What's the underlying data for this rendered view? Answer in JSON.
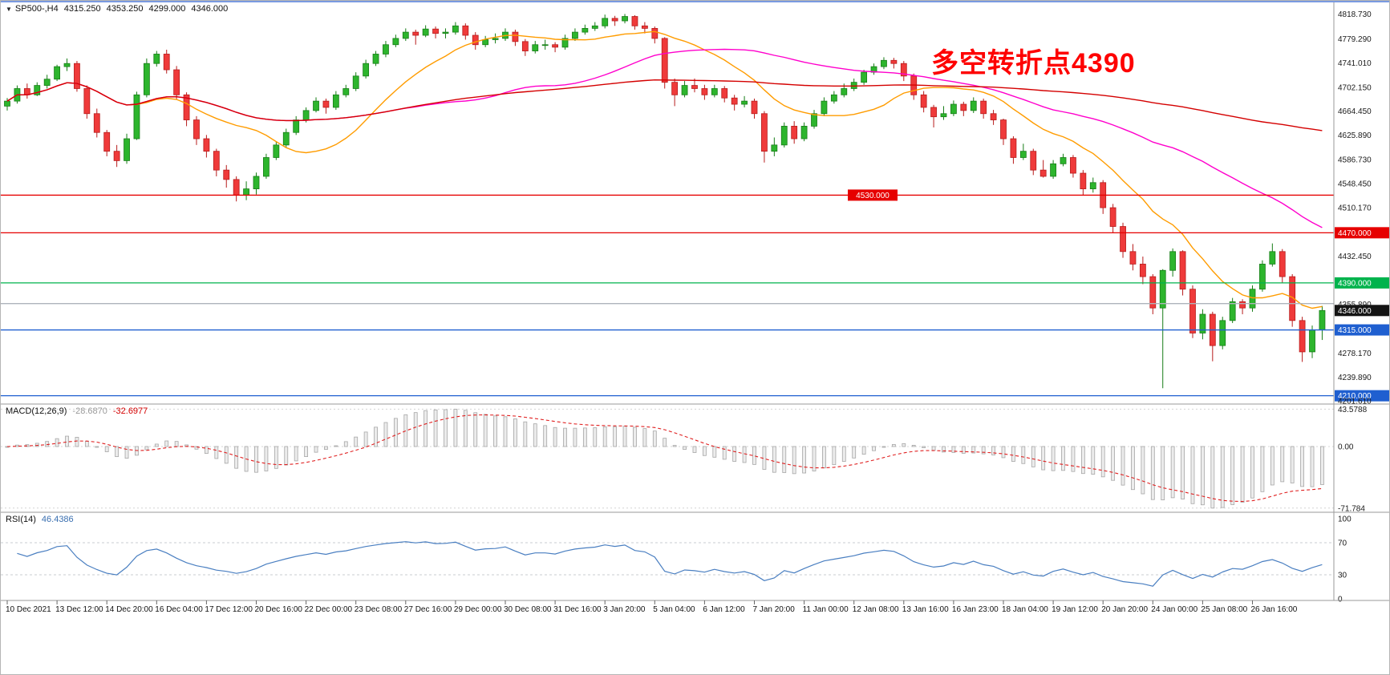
{
  "window": {
    "symbol": "SP500-,H4",
    "open": "4315.250",
    "high": "4353.250",
    "low": "4299.000",
    "close": "4346.000"
  },
  "annotation": {
    "text": "多空转折点4390",
    "color": "#fe0000"
  },
  "price_axis": {
    "labels": [
      "4818.730",
      "4779.290",
      "4741.010",
      "4702.150",
      "4664.450",
      "4625.890",
      "4586.730",
      "4548.450",
      "4510.170",
      "4432.450",
      "4355.890",
      "4278.170",
      "4239.890",
      "4201.610"
    ]
  },
  "main_chart": {
    "up_color": "#2db52d",
    "up_edge": "#177d17",
    "down_color": "#ef3a3a",
    "down_edge": "#b71c1c",
    "hlines": [
      {
        "price": 4530,
        "label": "4530.000",
        "color": "#e60000",
        "badge": "mid"
      },
      {
        "price": 4470,
        "label": "4470.000",
        "color": "#e60000",
        "badge": "axis"
      },
      {
        "price": 4390,
        "label": "4390.000",
        "color": "#00b34d",
        "badge": "axis"
      },
      {
        "price": 4357,
        "label": "",
        "color": "#aeb4bb",
        "badge": "none"
      },
      {
        "price": 4315,
        "label": "4315.000",
        "color": "#1f5fd0",
        "badge": "axis"
      },
      {
        "price": 4210,
        "label": "4210.000",
        "color": "#1f5fd0",
        "badge": "axis"
      }
    ],
    "current_price": {
      "label": "4346.000",
      "price": 4346,
      "bg": "#141414"
    },
    "moving_averages": [
      {
        "name": "ma-fast",
        "period": 13,
        "color": "#ff9c00"
      },
      {
        "name": "ma-mid",
        "period": 40,
        "color": "#ff00cc"
      },
      {
        "name": "ma-slow",
        "period": 120,
        "color": "#d40000"
      }
    ]
  },
  "indicators": {
    "macd": {
      "name": "MACD(12,26,9)",
      "main_value": "-28.6870",
      "signal_value": "-32.6977",
      "fast": 12,
      "slow": 26,
      "signal": 9,
      "hist_fill": "#ececec",
      "hist_edge": "#a6a6a6",
      "signal_color": "#e02020",
      "axis": [
        {
          "label": "43.5788",
          "value": 43.5788
        },
        {
          "label": "0.00",
          "value": 0
        },
        {
          "label": "-71.784",
          "value": -71.784
        }
      ]
    },
    "rsi": {
      "name": "RSI(14)",
      "value": "46.4386",
      "period": 14,
      "line_color": "#4a7fc1",
      "levels": [
        70,
        30
      ],
      "axis": [
        {
          "label": "100",
          "value": 100
        },
        {
          "label": "70",
          "value": 70
        },
        {
          "label": "30",
          "value": 30
        },
        {
          "label": "0",
          "value": 0
        }
      ]
    }
  },
  "time_axis": {
    "labels": [
      "10 Dec 2021",
      "13 Dec 12:00",
      "14 Dec 20:00",
      "16 Dec 04:00",
      "17 Dec 12:00",
      "20 Dec 16:00",
      "22 Dec 00:00",
      "23 Dec 08:00",
      "27 Dec 16:00",
      "29 Dec 00:00",
      "30 Dec 08:00",
      "31 Dec 16:00",
      "3 Jan 20:00",
      "5 Jan 04:00",
      "6 Jan 12:00",
      "7 Jan 20:00",
      "11 Jan 00:00",
      "12 Jan 08:00",
      "13 Jan 16:00",
      "16 Jan 23:00",
      "18 Jan 04:00",
      "19 Jan 12:00",
      "20 Jan 20:00",
      "24 Jan 00:00",
      "25 Jan 08:00",
      "26 Jan 16:00"
    ]
  },
  "chart_data": {
    "type": "candlestick",
    "symbol": "SP500-",
    "timeframe": "H4",
    "title": "SP500-,H4 4315.250 4353.250 4299.000 4346.000",
    "last_bar": {
      "open": 4315.25,
      "high": 4353.25,
      "low": 4299.0,
      "close": 4346.0
    },
    "price_lines": [
      4530,
      4470,
      4390,
      4315,
      4210
    ],
    "annotation": "多空转折点4390",
    "y_axis_ticks": [
      4818.73,
      4779.29,
      4741.01,
      4702.15,
      4664.45,
      4625.89,
      4586.73,
      4548.45,
      4510.17,
      4470.0,
      4432.45,
      4390.0,
      4355.89,
      4346.0,
      4315.0,
      4278.17,
      4239.89,
      4210.0,
      4201.61
    ],
    "x_labels": [
      "10 Dec 2021",
      "13 Dec 12:00",
      "14 Dec 20:00",
      "16 Dec 04:00",
      "17 Dec 12:00",
      "20 Dec 16:00",
      "22 Dec 00:00",
      "23 Dec 08:00",
      "27 Dec 16:00",
      "29 Dec 00:00",
      "30 Dec 08:00",
      "31 Dec 16:00",
      "3 Jan 20:00",
      "5 Jan 04:00",
      "6 Jan 12:00",
      "7 Jan 20:00",
      "11 Jan 00:00",
      "12 Jan 08:00",
      "13 Jan 16:00",
      "16 Jan 23:00",
      "18 Jan 04:00",
      "19 Jan 12:00",
      "20 Jan 20:00",
      "24 Jan 00:00",
      "25 Jan 08:00",
      "26 Jan 16:00"
    ],
    "candles_per_label": 5,
    "candles": [
      [
        4672,
        4685,
        4665,
        4680
      ],
      [
        4680,
        4705,
        4676,
        4700
      ],
      [
        4700,
        4708,
        4684,
        4690
      ],
      [
        4690,
        4710,
        4688,
        4705
      ],
      [
        4705,
        4722,
        4700,
        4715
      ],
      [
        4715,
        4738,
        4712,
        4735
      ],
      [
        4735,
        4748,
        4728,
        4740
      ],
      [
        4740,
        4744,
        4695,
        4700
      ],
      [
        4700,
        4705,
        4652,
        4660
      ],
      [
        4660,
        4668,
        4622,
        4630
      ],
      [
        4630,
        4634,
        4592,
        4600
      ],
      [
        4600,
        4610,
        4575,
        4585
      ],
      [
        4585,
        4628,
        4580,
        4620
      ],
      [
        4620,
        4695,
        4618,
        4690
      ],
      [
        4690,
        4748,
        4686,
        4740
      ],
      [
        4740,
        4760,
        4735,
        4755
      ],
      [
        4755,
        4762,
        4724,
        4730
      ],
      [
        4730,
        4736,
        4682,
        4690
      ],
      [
        4690,
        4694,
        4640,
        4650
      ],
      [
        4650,
        4656,
        4610,
        4620
      ],
      [
        4620,
        4626,
        4590,
        4600
      ],
      [
        4600,
        4604,
        4560,
        4570
      ],
      [
        4570,
        4578,
        4542,
        4555
      ],
      [
        4555,
        4560,
        4520,
        4530
      ],
      [
        4530,
        4552,
        4522,
        4540
      ],
      [
        4540,
        4566,
        4531,
        4560
      ],
      [
        4560,
        4596,
        4556,
        4590
      ],
      [
        4590,
        4616,
        4586,
        4610
      ],
      [
        4610,
        4636,
        4606,
        4630
      ],
      [
        4630,
        4656,
        4626,
        4650
      ],
      [
        4650,
        4670,
        4646,
        4665
      ],
      [
        4665,
        4686,
        4662,
        4680
      ],
      [
        4680,
        4684,
        4660,
        4670
      ],
      [
        4670,
        4696,
        4666,
        4690
      ],
      [
        4690,
        4706,
        4686,
        4700
      ],
      [
        4700,
        4726,
        4696,
        4720
      ],
      [
        4720,
        4746,
        4716,
        4740
      ],
      [
        4740,
        4760,
        4736,
        4755
      ],
      [
        4755,
        4776,
        4750,
        4770
      ],
      [
        4770,
        4786,
        4766,
        4780
      ],
      [
        4780,
        4796,
        4776,
        4790
      ],
      [
        4790,
        4794,
        4770,
        4785
      ],
      [
        4785,
        4801,
        4782,
        4795
      ],
      [
        4795,
        4799,
        4780,
        4788
      ],
      [
        4788,
        4796,
        4780,
        4790
      ],
      [
        4790,
        4806,
        4786,
        4800
      ],
      [
        4800,
        4804,
        4778,
        4785
      ],
      [
        4785,
        4790,
        4762,
        4770
      ],
      [
        4770,
        4784,
        4766,
        4778
      ],
      [
        4778,
        4788,
        4772,
        4780
      ],
      [
        4780,
        4796,
        4776,
        4790
      ],
      [
        4790,
        4794,
        4768,
        4775
      ],
      [
        4775,
        4779,
        4752,
        4760
      ],
      [
        4760,
        4776,
        4756,
        4770
      ],
      [
        4770,
        4778,
        4762,
        4770
      ],
      [
        4770,
        4774,
        4758,
        4766
      ],
      [
        4766,
        4786,
        4762,
        4780
      ],
      [
        4780,
        4796,
        4776,
        4790
      ],
      [
        4790,
        4802,
        4786,
        4796
      ],
      [
        4796,
        4806,
        4792,
        4800
      ],
      [
        4800,
        4818,
        4796,
        4812
      ],
      [
        4812,
        4816,
        4800,
        4808
      ],
      [
        4808,
        4819,
        4804,
        4815
      ],
      [
        4815,
        4817,
        4794,
        4800
      ],
      [
        4800,
        4806,
        4788,
        4796
      ],
      [
        4796,
        4799,
        4772,
        4780
      ],
      [
        4780,
        4782,
        4700,
        4710
      ],
      [
        4710,
        4716,
        4672,
        4690
      ],
      [
        4690,
        4712,
        4686,
        4705
      ],
      [
        4705,
        4716,
        4694,
        4700
      ],
      [
        4700,
        4706,
        4682,
        4690
      ],
      [
        4690,
        4706,
        4686,
        4700
      ],
      [
        4700,
        4704,
        4678,
        4685
      ],
      [
        4685,
        4690,
        4665,
        4675
      ],
      [
        4675,
        4688,
        4670,
        4680
      ],
      [
        4680,
        4684,
        4652,
        4660
      ],
      [
        4660,
        4664,
        4582,
        4600
      ],
      [
        4600,
        4622,
        4592,
        4610
      ],
      [
        4610,
        4646,
        4606,
        4640
      ],
      [
        4640,
        4648,
        4612,
        4620
      ],
      [
        4620,
        4646,
        4616,
        4640
      ],
      [
        4640,
        4666,
        4636,
        4660
      ],
      [
        4660,
        4686,
        4656,
        4680
      ],
      [
        4680,
        4696,
        4676,
        4690
      ],
      [
        4690,
        4708,
        4686,
        4700
      ],
      [
        4700,
        4716,
        4696,
        4710
      ],
      [
        4710,
        4730,
        4706,
        4726
      ],
      [
        4726,
        4740,
        4722,
        4735
      ],
      [
        4735,
        4750,
        4731,
        4745
      ],
      [
        4745,
        4749,
        4732,
        4740
      ],
      [
        4740,
        4744,
        4712,
        4720
      ],
      [
        4720,
        4724,
        4682,
        4690
      ],
      [
        4690,
        4696,
        4662,
        4670
      ],
      [
        4670,
        4674,
        4638,
        4655
      ],
      [
        4655,
        4672,
        4650,
        4660
      ],
      [
        4660,
        4681,
        4656,
        4675
      ],
      [
        4675,
        4679,
        4656,
        4665
      ],
      [
        4665,
        4686,
        4661,
        4680
      ],
      [
        4680,
        4684,
        4652,
        4660
      ],
      [
        4660,
        4666,
        4642,
        4650
      ],
      [
        4650,
        4652,
        4610,
        4620
      ],
      [
        4620,
        4624,
        4580,
        4590
      ],
      [
        4590,
        4612,
        4586,
        4600
      ],
      [
        4600,
        4604,
        4562,
        4570
      ],
      [
        4570,
        4586,
        4558,
        4560
      ],
      [
        4560,
        4586,
        4556,
        4580
      ],
      [
        4580,
        4596,
        4576,
        4590
      ],
      [
        4590,
        4594,
        4558,
        4565
      ],
      [
        4565,
        4570,
        4530,
        4540
      ],
      [
        4540,
        4558,
        4534,
        4550
      ],
      [
        4550,
        4554,
        4500,
        4510
      ],
      [
        4510,
        4516,
        4470,
        4480
      ],
      [
        4480,
        4486,
        4430,
        4440
      ],
      [
        4440,
        4452,
        4410,
        4420
      ],
      [
        4420,
        4432,
        4388,
        4400
      ],
      [
        4400,
        4404,
        4340,
        4350
      ],
      [
        4350,
        4412,
        4222,
        4410
      ],
      [
        4410,
        4445,
        4400,
        4440
      ],
      [
        4440,
        4442,
        4370,
        4380
      ],
      [
        4380,
        4386,
        4302,
        4310
      ],
      [
        4310,
        4348,
        4300,
        4340
      ],
      [
        4340,
        4344,
        4265,
        4290
      ],
      [
        4290,
        4336,
        4284,
        4330
      ],
      [
        4330,
        4366,
        4326,
        4360
      ],
      [
        4360,
        4364,
        4340,
        4350
      ],
      [
        4350,
        4386,
        4344,
        4380
      ],
      [
        4380,
        4426,
        4376,
        4420
      ],
      [
        4420,
        4453,
        4416,
        4440
      ],
      [
        4440,
        4444,
        4390,
        4400
      ],
      [
        4400,
        4404,
        4320,
        4330
      ],
      [
        4330,
        4336,
        4264,
        4280
      ],
      [
        4280,
        4322,
        4270,
        4315
      ],
      [
        4315.25,
        4353.25,
        4299,
        4346
      ]
    ],
    "macd": {
      "params": [
        12,
        26,
        9
      ],
      "last_main": -28.687,
      "last_signal": -32.6977,
      "range": [
        -71.784,
        43.5788
      ]
    },
    "rsi": {
      "period": 14,
      "last": 46.4386,
      "range": [
        0,
        100
      ],
      "levels": [
        70,
        30
      ]
    }
  }
}
